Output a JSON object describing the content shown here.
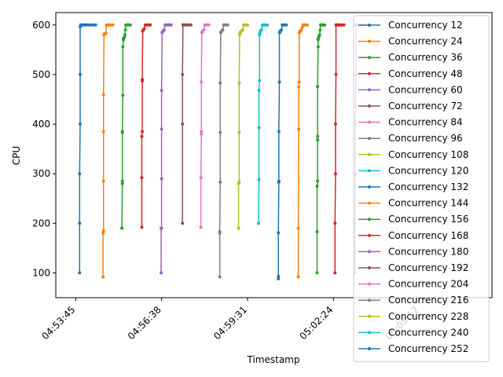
{
  "chart_data": {
    "type": "line",
    "xlabel": "Timestamp",
    "ylabel": "CPU",
    "x_ticks": [
      "04:53:45",
      "04:56:38",
      "04:59:31",
      "05:02:24",
      "05:05:17"
    ],
    "y_ticks": [
      100,
      200,
      300,
      400,
      500,
      600
    ],
    "x_range_seconds": [
      -40,
      838
    ],
    "ylim": [
      50,
      625
    ],
    "grid": false,
    "legend_position": "upper right",
    "series": [
      {
        "name": "Concurrency 12",
        "color": "#1f77b4",
        "x": [
          8,
          8,
          8,
          9,
          9,
          9,
          10,
          12,
          15,
          18,
          22,
          26,
          30,
          35,
          40
        ],
        "y": [
          100,
          200,
          300,
          400,
          500,
          596,
          600,
          600,
          600,
          600,
          600,
          600,
          600,
          600,
          600
        ]
      },
      {
        "name": "Concurrency 24",
        "color": "#ff7f0e",
        "x": [
          55,
          55,
          56,
          56,
          56,
          56,
          57,
          57,
          58,
          60,
          61,
          62,
          63,
          66,
          70,
          75
        ],
        "y": [
          92,
          180,
          185,
          285,
          385,
          460,
          580,
          580,
          582,
          583,
          583,
          600,
          600,
          600,
          600,
          600
        ]
      },
      {
        "name": "Concurrency 36",
        "color": "#2ca02c",
        "x": [
          93,
          93,
          94,
          94,
          94,
          94,
          95,
          95,
          96,
          96,
          98,
          99,
          100,
          101,
          103,
          106,
          110
        ],
        "y": [
          190,
          190,
          280,
          285,
          383,
          385,
          458,
          556,
          570,
          573,
          575,
          580,
          590,
          600,
          600,
          600,
          600
        ]
      },
      {
        "name": "Concurrency 48",
        "color": "#d62728",
        "x": [
          133,
          133,
          133,
          134,
          134,
          134,
          135,
          135,
          136,
          138,
          140,
          143,
          146,
          150
        ],
        "y": [
          192,
          292,
          375,
          385,
          487,
          490,
          588,
          588,
          590,
          592,
          600,
          600,
          600,
          600
        ]
      },
      {
        "name": "Concurrency 60",
        "color": "#9467bd",
        "x": [
          172,
          172,
          173,
          173,
          173,
          173,
          174,
          174,
          175,
          176,
          178,
          180,
          182,
          185,
          188,
          192
        ],
        "y": [
          100,
          190,
          190,
          290,
          390,
          468,
          585,
          585,
          586,
          588,
          590,
          600,
          600,
          600,
          600,
          600
        ]
      },
      {
        "name": "Concurrency 72",
        "color": "#8c564b",
        "x": [
          215,
          215,
          215,
          216,
          216,
          217,
          218,
          220,
          222,
          225,
          228,
          232
        ],
        "y": [
          200,
          400,
          500,
          600,
          600,
          600,
          600,
          600,
          600,
          600,
          600,
          600
        ]
      },
      {
        "name": "Concurrency 84",
        "color": "#e377c2",
        "x": [
          252,
          252,
          253,
          253,
          253,
          254,
          254,
          255,
          256,
          258,
          260,
          262,
          264,
          268
        ],
        "y": [
          192,
          292,
          380,
          385,
          485,
          585,
          585,
          586,
          588,
          590,
          600,
          600,
          600,
          600
        ]
      },
      {
        "name": "Concurrency 96",
        "color": "#7f7f7f",
        "x": [
          290,
          290,
          290,
          291,
          291,
          291,
          292,
          292,
          293,
          294,
          296,
          298,
          300,
          303,
          306
        ],
        "y": [
          92,
          180,
          183,
          283,
          383,
          483,
          585,
          585,
          586,
          588,
          590,
          600,
          600,
          600,
          600
        ]
      },
      {
        "name": "Concurrency 108",
        "color": "#bcbd22",
        "x": [
          328,
          328,
          329,
          329,
          329,
          330,
          330,
          331,
          332,
          334,
          336,
          338,
          340,
          343,
          346
        ],
        "y": [
          190,
          280,
          283,
          383,
          483,
          580,
          582,
          584,
          586,
          588,
          590,
          600,
          600,
          600,
          600
        ]
      },
      {
        "name": "Concurrency 120",
        "color": "#17becf",
        "x": [
          368,
          368,
          369,
          369,
          369,
          370,
          370,
          371,
          372,
          374,
          376,
          378,
          380,
          383,
          386
        ],
        "y": [
          200,
          200,
          288,
          393,
          468,
          488,
          580,
          583,
          588,
          590,
          600,
          600,
          600,
          600,
          600
        ]
      },
      {
        "name": "Concurrency 132",
        "color": "#1f77b4",
        "x": [
          408,
          408,
          408,
          409,
          409,
          409,
          410,
          410,
          411,
          412,
          414,
          416,
          418,
          421,
          424
        ],
        "y": [
          88,
          93,
          181,
          283,
          285,
          385,
          485,
          585,
          585,
          588,
          590,
          600,
          600,
          600,
          600
        ]
      },
      {
        "name": "Concurrency 144",
        "color": "#ff7f0e",
        "x": [
          448,
          448,
          449,
          449,
          449,
          450,
          450,
          451,
          452,
          454,
          456,
          458,
          460,
          463,
          466
        ],
        "y": [
          92,
          190,
          390,
          390,
          475,
          485,
          585,
          585,
          588,
          590,
          595,
          600,
          600,
          600,
          600
        ]
      },
      {
        "name": "Concurrency 156",
        "color": "#2ca02c",
        "x": [
          486,
          486,
          486,
          487,
          487,
          487,
          487,
          488,
          488,
          488,
          489,
          490,
          491,
          492,
          493,
          494,
          496,
          498,
          501
        ],
        "y": [
          100,
          183,
          275,
          285,
          368,
          375,
          476,
          556,
          570,
          572,
          575,
          578,
          580,
          590,
          600,
          600,
          600,
          600,
          600
        ]
      },
      {
        "name": "Concurrency 168",
        "color": "#d62728",
        "x": [
          522,
          522,
          523,
          523,
          524,
          524,
          525,
          526,
          528,
          530,
          533,
          536,
          540
        ],
        "y": [
          100,
          200,
          300,
          400,
          500,
          600,
          600,
          600,
          600,
          600,
          600,
          600,
          600
        ]
      },
      {
        "name": "Concurrency 180",
        "color": "#9467bd",
        "x": [
          562,
          562,
          563,
          563,
          564,
          564,
          565,
          566,
          568,
          570,
          573,
          576,
          580
        ],
        "y": [
          100,
          200,
          300,
          400,
          500,
          600,
          600,
          600,
          600,
          600,
          600,
          600,
          600
        ]
      }
    ]
  }
}
